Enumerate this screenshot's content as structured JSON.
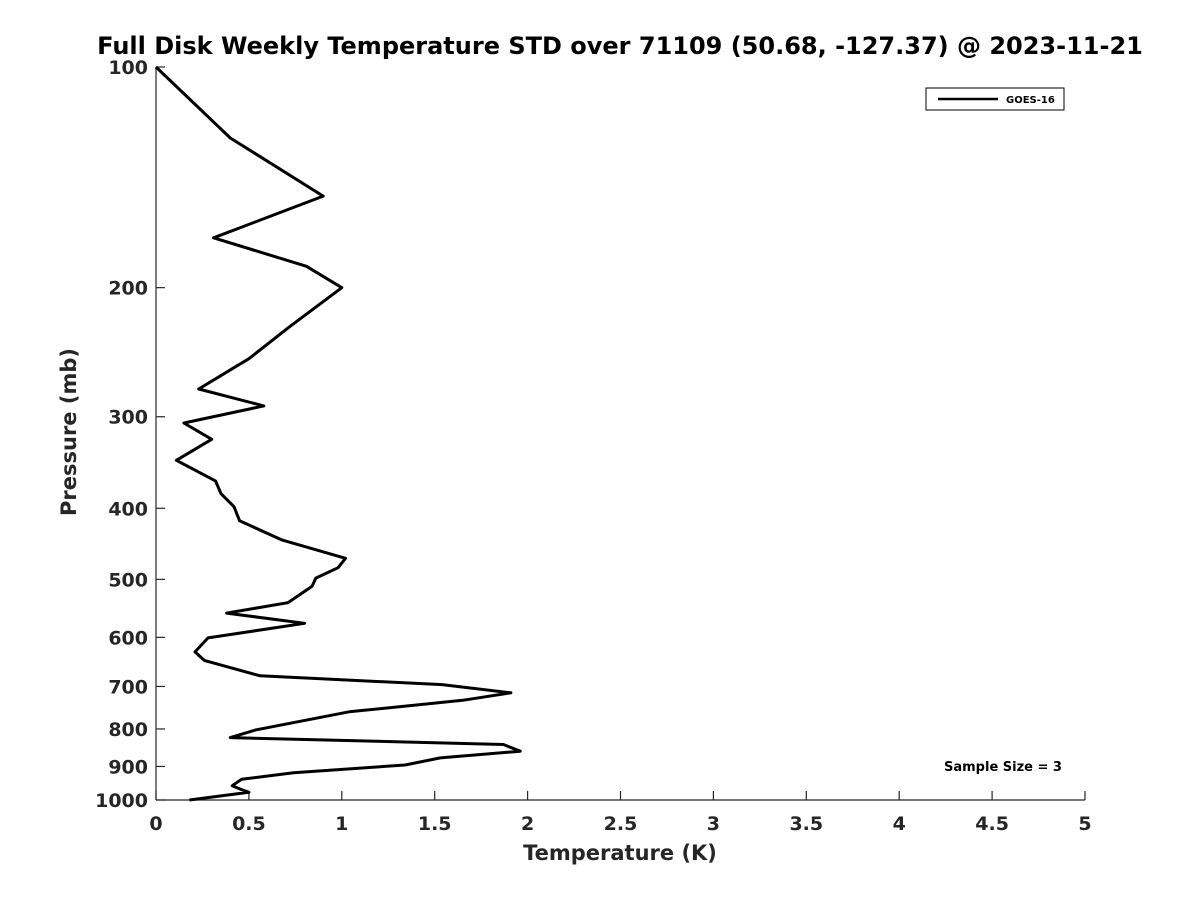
{
  "chart_data": {
    "type": "line",
    "title": "Full Disk Weekly Temperature STD over 71109 (50.68, -127.37) @ 2023-11-21",
    "xlabel": "Temperature (K)",
    "ylabel": "Pressure (mb)",
    "xlim": [
      0,
      5
    ],
    "ylim": [
      100,
      1000
    ],
    "y_scale": "log",
    "y_reversed": true,
    "x_ticks": [
      "0",
      "0.5",
      "1",
      "1.5",
      "2",
      "2.5",
      "3",
      "3.5",
      "4",
      "4.5",
      "5"
    ],
    "y_ticks": [
      "100",
      "200",
      "300",
      "400",
      "500",
      "600",
      "700",
      "800",
      "900",
      "1000"
    ],
    "grid": false,
    "legend_position": "top-right",
    "series": [
      {
        "name": "GOES-16",
        "color": "#000000",
        "points": [
          [
            0.0,
            100
          ],
          [
            0.4,
            125
          ],
          [
            0.9,
            150
          ],
          [
            0.31,
            171
          ],
          [
            0.81,
            187
          ],
          [
            1.0,
            200
          ],
          [
            0.72,
            226
          ],
          [
            0.5,
            250
          ],
          [
            0.23,
            275
          ],
          [
            0.58,
            290
          ],
          [
            0.15,
            306
          ],
          [
            0.3,
            322
          ],
          [
            0.11,
            344
          ],
          [
            0.32,
            367
          ],
          [
            0.35,
            382
          ],
          [
            0.42,
            398
          ],
          [
            0.45,
            416
          ],
          [
            0.68,
            442
          ],
          [
            1.02,
            468
          ],
          [
            0.98,
            482
          ],
          [
            0.86,
            498
          ],
          [
            0.84,
            511
          ],
          [
            0.71,
            538
          ],
          [
            0.38,
            556
          ],
          [
            0.8,
            574
          ],
          [
            0.28,
            601
          ],
          [
            0.21,
            628
          ],
          [
            0.26,
            645
          ],
          [
            0.56,
            677
          ],
          [
            1.54,
            696
          ],
          [
            1.91,
            714
          ],
          [
            1.65,
            731
          ],
          [
            1.04,
            758
          ],
          [
            0.54,
            802
          ],
          [
            0.4,
            822
          ],
          [
            1.87,
            840
          ],
          [
            1.96,
            858
          ],
          [
            1.53,
            876
          ],
          [
            1.34,
            896
          ],
          [
            0.74,
            918
          ],
          [
            0.46,
            937
          ],
          [
            0.41,
            956
          ],
          [
            0.46,
            968
          ],
          [
            0.5,
            976
          ],
          [
            0.18,
            1000
          ]
        ]
      }
    ],
    "annotation": "Sample Size = 3"
  }
}
